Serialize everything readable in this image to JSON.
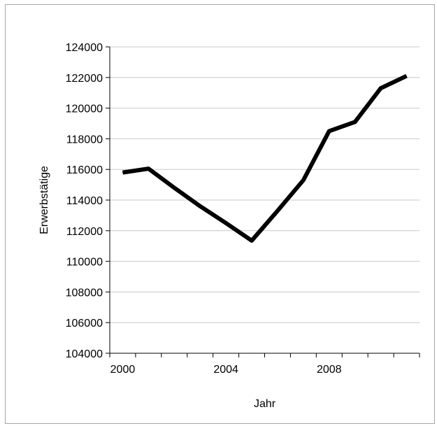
{
  "chart_data": {
    "type": "line",
    "title": "",
    "xlabel": "Jahr",
    "ylabel": "Erwerbstätige",
    "x": [
      2000,
      2001,
      2002,
      2003,
      2004,
      2005,
      2006,
      2007,
      2008,
      2009,
      2010,
      2011
    ],
    "series": [
      {
        "values": [
          115800,
          116050,
          114800,
          113600,
          112500,
          111350,
          113300,
          115300,
          118500,
          119100,
          121300,
          122100
        ],
        "color": "#000000"
      }
    ],
    "xlim": [
      1999.5,
      2011.5
    ],
    "ylim": [
      104000,
      124000
    ],
    "yticks": [
      104000,
      106000,
      108000,
      110000,
      112000,
      114000,
      116000,
      118000,
      120000,
      122000,
      124000
    ],
    "ytick_labels": [
      "104000",
      "106000",
      "108000",
      "110000",
      "112000",
      "114000",
      "116000",
      "118000",
      "120000",
      "122000",
      "124000"
    ],
    "xtick_labels": [
      {
        "value": 2000,
        "label": "2000"
      },
      {
        "value": 2004,
        "label": "2004"
      },
      {
        "value": 2008,
        "label": "2008"
      }
    ],
    "grid": true,
    "legend": "none"
  }
}
